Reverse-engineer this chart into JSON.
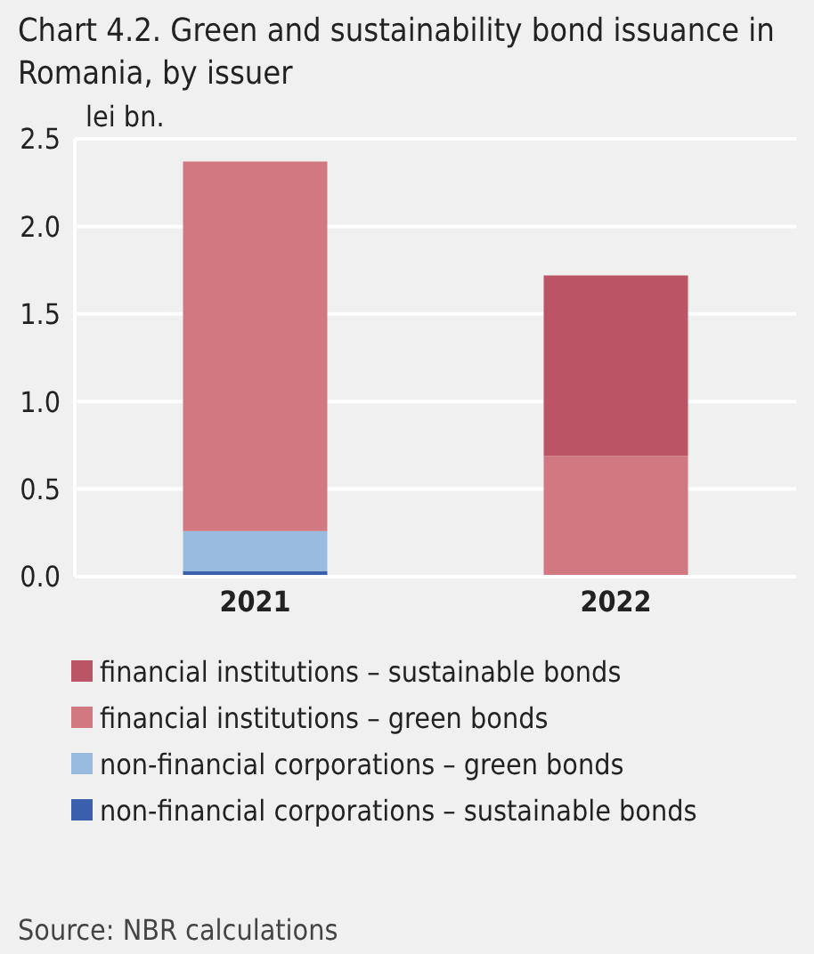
{
  "chart_data": {
    "type": "bar",
    "title": "Chart 4.2. Green and sustainability bond issuance in Romania, by issuer",
    "ylabel": "lei bn.",
    "categories": [
      "2021",
      "2022"
    ],
    "stacked": true,
    "series": [
      {
        "name": "non-financial corporations – sustainable bonds",
        "color": "#3a5fad",
        "values": [
          0.03,
          0
        ]
      },
      {
        "name": "non-financial corporations – green bonds",
        "color": "#99bbdf",
        "values": [
          0.23,
          0
        ]
      },
      {
        "name": "financial institutions – green bonds",
        "color": "#d27881",
        "values": [
          2.11,
          0.69
        ]
      },
      {
        "name": "financial institutions – sustainable bonds",
        "color": "#bb5565",
        "values": [
          0,
          1.03
        ]
      }
    ],
    "ylim": [
      0,
      2.5
    ],
    "yticks": [
      {
        "value": 0,
        "label": "0.0"
      },
      {
        "value": 0.5,
        "label": "0.5"
      },
      {
        "value": 1,
        "label": "1.0"
      },
      {
        "value": 1.5,
        "label": "1.5"
      },
      {
        "value": 2,
        "label": "2.0"
      },
      {
        "value": 2.5,
        "label": "2.5"
      }
    ],
    "grid": "y",
    "legend": "bottom",
    "annotations": [
      "Source: NBR calculations"
    ]
  }
}
